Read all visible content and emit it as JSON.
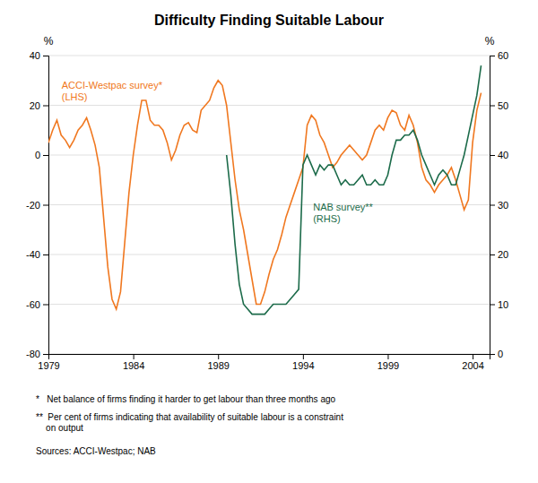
{
  "chart_data": {
    "type": "line",
    "title": "Difficulty Finding Suitable Labour",
    "y_label": "%",
    "y2_label": "%",
    "xlim": [
      1979,
      2005
    ],
    "xticks": [
      1979,
      1984,
      1989,
      1994,
      1999,
      2004
    ],
    "ylim": [
      -80,
      40
    ],
    "yticks": [
      -80,
      -60,
      -40,
      -20,
      0,
      20,
      40
    ],
    "y2lim": [
      0,
      60
    ],
    "y2ticks": [
      0,
      10,
      20,
      30,
      40,
      50,
      60
    ],
    "grid": true,
    "annotations": [
      "ACCI-Westpac survey*\n(LHS)",
      "NAB survey**\n(RHS)"
    ],
    "footnotes": [
      "*   Net balance of firms finding it harder to get labour than three months ago",
      "**  Per cent of firms indicating that availability of suitable labour is a constraint\n    on output",
      "Sources: ACCI-Westpac; NAB"
    ],
    "series": [
      {
        "color": "#F07820",
        "axis": "y",
        "x": [
          1979.0,
          1979.25,
          1979.5,
          1979.75,
          1980.0,
          1980.25,
          1980.5,
          1980.75,
          1981.0,
          1981.25,
          1981.5,
          1981.75,
          1982.0,
          1982.25,
          1982.5,
          1982.75,
          1983.0,
          1983.25,
          1983.5,
          1983.75,
          1984.0,
          1984.25,
          1984.5,
          1984.75,
          1985.0,
          1985.25,
          1985.5,
          1985.75,
          1986.0,
          1986.25,
          1986.5,
          1986.75,
          1987.0,
          1987.25,
          1987.5,
          1987.75,
          1988.0,
          1988.25,
          1988.5,
          1988.75,
          1989.0,
          1989.25,
          1989.5,
          1989.75,
          1990.0,
          1990.25,
          1990.5,
          1990.75,
          1991.0,
          1991.25,
          1991.5,
          1991.75,
          1992.0,
          1992.25,
          1992.5,
          1992.75,
          1993.0,
          1993.25,
          1993.5,
          1993.75,
          1994.0,
          1994.25,
          1994.5,
          1994.75,
          1995.0,
          1995.25,
          1995.5,
          1995.75,
          1996.0,
          1996.25,
          1996.5,
          1996.75,
          1997.0,
          1997.25,
          1997.5,
          1997.75,
          1998.0,
          1998.25,
          1998.5,
          1998.75,
          1999.0,
          1999.25,
          1999.5,
          1999.75,
          2000.0,
          2000.25,
          2000.5,
          2000.75,
          2001.0,
          2001.25,
          2001.5,
          2001.75,
          2002.0,
          2002.25,
          2002.5,
          2002.75,
          2003.0,
          2003.25,
          2003.5,
          2003.75,
          2004.0,
          2004.25,
          2004.5
        ],
        "values": [
          5,
          10,
          14,
          8,
          6,
          3,
          6,
          10,
          12,
          15,
          10,
          4,
          -5,
          -25,
          -45,
          -58,
          -62,
          -55,
          -35,
          -15,
          0,
          12,
          22,
          22,
          14,
          12,
          12,
          10,
          5,
          -2,
          2,
          8,
          12,
          13,
          10,
          9,
          18,
          20,
          22,
          27,
          30,
          28,
          20,
          5,
          -10,
          -22,
          -30,
          -40,
          -50,
          -60,
          -60,
          -55,
          -48,
          -42,
          -38,
          -32,
          -25,
          -20,
          -15,
          -10,
          -5,
          12,
          16,
          14,
          8,
          5,
          0,
          -5,
          -3,
          0,
          2,
          4,
          2,
          0,
          -2,
          0,
          5,
          10,
          12,
          10,
          15,
          18,
          17,
          12,
          10,
          16,
          12,
          5,
          -5,
          -10,
          -12,
          -15,
          -12,
          -10,
          -8,
          -5,
          -10,
          -16,
          -22,
          -18,
          5,
          18,
          25
        ]
      },
      {
        "color": "#1C6B4A",
        "axis": "y2",
        "x": [
          1989.5,
          1989.75,
          1990.0,
          1990.25,
          1990.5,
          1990.75,
          1991.0,
          1991.25,
          1991.5,
          1991.75,
          1992.0,
          1992.25,
          1992.5,
          1992.75,
          1993.0,
          1993.25,
          1993.5,
          1993.75,
          1994.0,
          1994.25,
          1994.5,
          1994.75,
          1995.0,
          1995.25,
          1995.5,
          1995.75,
          1996.0,
          1996.25,
          1996.5,
          1996.75,
          1997.0,
          1997.25,
          1997.5,
          1997.75,
          1998.0,
          1998.25,
          1998.5,
          1998.75,
          1999.0,
          1999.25,
          1999.5,
          1999.75,
          2000.0,
          2000.25,
          2000.5,
          2000.75,
          2001.0,
          2001.25,
          2001.5,
          2001.75,
          2002.0,
          2002.25,
          2002.5,
          2002.75,
          2003.0,
          2003.25,
          2003.5,
          2003.75,
          2004.0,
          2004.25,
          2004.5
        ],
        "values": [
          40,
          32,
          22,
          14,
          10,
          9,
          8,
          8,
          8,
          8,
          9,
          10,
          10,
          10,
          10,
          11,
          12,
          13,
          38,
          40,
          38,
          36,
          38,
          37,
          38,
          38,
          36,
          34,
          35,
          34,
          34,
          35,
          36,
          34,
          34,
          35,
          34,
          34,
          36,
          40,
          43,
          43,
          44,
          44,
          45,
          43,
          40,
          38,
          36,
          34,
          36,
          37,
          36,
          34,
          34,
          37,
          40,
          44,
          48,
          52,
          58
        ]
      }
    ]
  }
}
